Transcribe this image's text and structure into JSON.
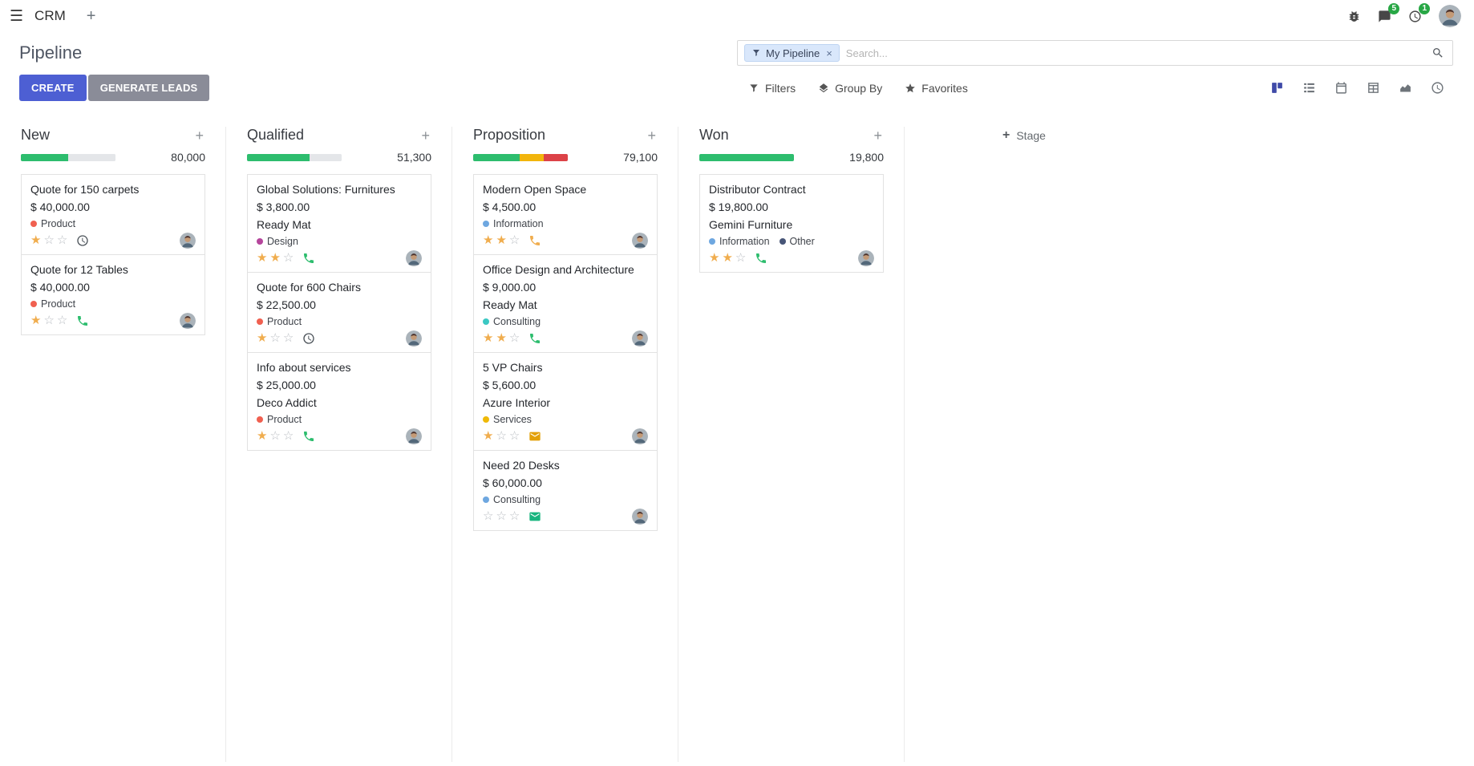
{
  "theme": {
    "accent": "#4d5fd3",
    "muted_button": "#8a8c98",
    "badge_green": "#28a745",
    "progress_green": "#2dbd6e",
    "progress_yellow": "#f2b50c",
    "progress_red": "#dc4247",
    "progress_empty": "#e4e6e9",
    "star_filled": "#f0ad4e",
    "star_empty": "#b9bdc2"
  },
  "icons": {
    "hamburger": "☰",
    "plus": "+",
    "facet_remove": "×",
    "star_filled": "★",
    "star_empty": "☆",
    "navbar_right": [
      "bug-icon",
      "chat-icon",
      "clock-icon",
      "avatar"
    ],
    "search": "magnifier",
    "filters": "funnel",
    "group_by": "layers",
    "favorites": "star"
  },
  "navbar": {
    "app_name": "CRM",
    "messages_badge": "5",
    "activities_badge": "1"
  },
  "control": {
    "title": "Pipeline",
    "create_label": "CREATE",
    "generate_leads_label": "GENERATE LEADS",
    "search_facet": "My Pipeline",
    "search_placeholder": "Search...",
    "filters_label": "Filters",
    "group_by_label": "Group By",
    "favorites_label": "Favorites",
    "view_switcher": [
      {
        "name": "kanban",
        "active": true
      },
      {
        "name": "list",
        "active": false
      },
      {
        "name": "calendar",
        "active": false
      },
      {
        "name": "pivot",
        "active": false
      },
      {
        "name": "graph",
        "active": false
      },
      {
        "name": "activity",
        "active": false
      }
    ]
  },
  "kanban": {
    "add_stage_label": "Stage",
    "columns": [
      {
        "name": "New",
        "counter": "80,000",
        "progress": [
          {
            "color": "#2dbd6e",
            "pct": 50
          },
          {
            "color": "#e4e6e9",
            "pct": 50
          }
        ],
        "cards": [
          {
            "title": "Quote for 150 carpets",
            "amount": "$ 40,000.00",
            "partner": "",
            "tags": [
              {
                "label": "Product",
                "color": "#f06050"
              }
            ],
            "stars": 1,
            "activity": {
              "type": "clock",
              "color": "#495057"
            }
          },
          {
            "title": "Quote for 12 Tables",
            "amount": "$ 40,000.00",
            "partner": "",
            "tags": [
              {
                "label": "Product",
                "color": "#f06050"
              }
            ],
            "stars": 1,
            "activity": {
              "type": "phone",
              "color": "#2dbd6e"
            }
          }
        ]
      },
      {
        "name": "Qualified",
        "counter": "51,300",
        "progress": [
          {
            "color": "#2dbd6e",
            "pct": 66
          },
          {
            "color": "#e4e6e9",
            "pct": 34
          }
        ],
        "cards": [
          {
            "title": "Global Solutions: Furnitures",
            "amount": "$ 3,800.00",
            "partner": "Ready Mat",
            "tags": [
              {
                "label": "Design",
                "color": "#b5459c"
              }
            ],
            "stars": 2,
            "activity": {
              "type": "phone",
              "color": "#2dbd6e"
            }
          },
          {
            "title": "Quote for 600 Chairs",
            "amount": "$ 22,500.00",
            "partner": "",
            "tags": [
              {
                "label": "Product",
                "color": "#f06050"
              }
            ],
            "stars": 1,
            "activity": {
              "type": "clock",
              "color": "#495057"
            }
          },
          {
            "title": "Info about services",
            "amount": "$ 25,000.00",
            "partner": "Deco Addict",
            "tags": [
              {
                "label": "Product",
                "color": "#f06050"
              }
            ],
            "stars": 1,
            "activity": {
              "type": "phone",
              "color": "#2dbd6e"
            }
          }
        ]
      },
      {
        "name": "Proposition",
        "counter": "79,100",
        "progress": [
          {
            "color": "#2dbd6e",
            "pct": 49
          },
          {
            "color": "#f2b50c",
            "pct": 26
          },
          {
            "color": "#dc4247",
            "pct": 25
          }
        ],
        "cards": [
          {
            "title": "Modern Open Space",
            "amount": "$ 4,500.00",
            "partner": "",
            "tags": [
              {
                "label": "Information",
                "color": "#6ea7e0"
              }
            ],
            "stars": 2,
            "activity": {
              "type": "phone",
              "color": "#f0ad4e"
            }
          },
          {
            "title": "Office Design and Architecture",
            "amount": "$ 9,000.00",
            "partner": "Ready Mat",
            "tags": [
              {
                "label": "Consulting",
                "color": "#3bc8c3"
              }
            ],
            "stars": 2,
            "activity": {
              "type": "phone",
              "color": "#2dbd6e"
            }
          },
          {
            "title": "5 VP Chairs",
            "amount": "$ 5,600.00",
            "partner": "Azure Interior",
            "tags": [
              {
                "label": "Services",
                "color": "#efb908"
              }
            ],
            "stars": 1,
            "activity": {
              "type": "envelope",
              "color": "#e3a008"
            }
          },
          {
            "title": "Need 20 Desks",
            "amount": "$ 60,000.00",
            "partner": "",
            "tags": [
              {
                "label": "Consulting",
                "color": "#6ea7e0"
              }
            ],
            "stars": 0,
            "activity": {
              "type": "envelope",
              "color": "#18b57f"
            }
          }
        ]
      },
      {
        "name": "Won",
        "counter": "19,800",
        "progress": [
          {
            "color": "#2dbd6e",
            "pct": 100
          }
        ],
        "cards": [
          {
            "title": "Distributor Contract",
            "amount": "$ 19,800.00",
            "partner": "Gemini Furniture",
            "tags": [
              {
                "label": "Information",
                "color": "#6ea7e0"
              },
              {
                "label": "Other",
                "color": "#475577"
              }
            ],
            "stars": 2,
            "activity": {
              "type": "phone",
              "color": "#2dbd6e"
            }
          }
        ]
      }
    ]
  }
}
